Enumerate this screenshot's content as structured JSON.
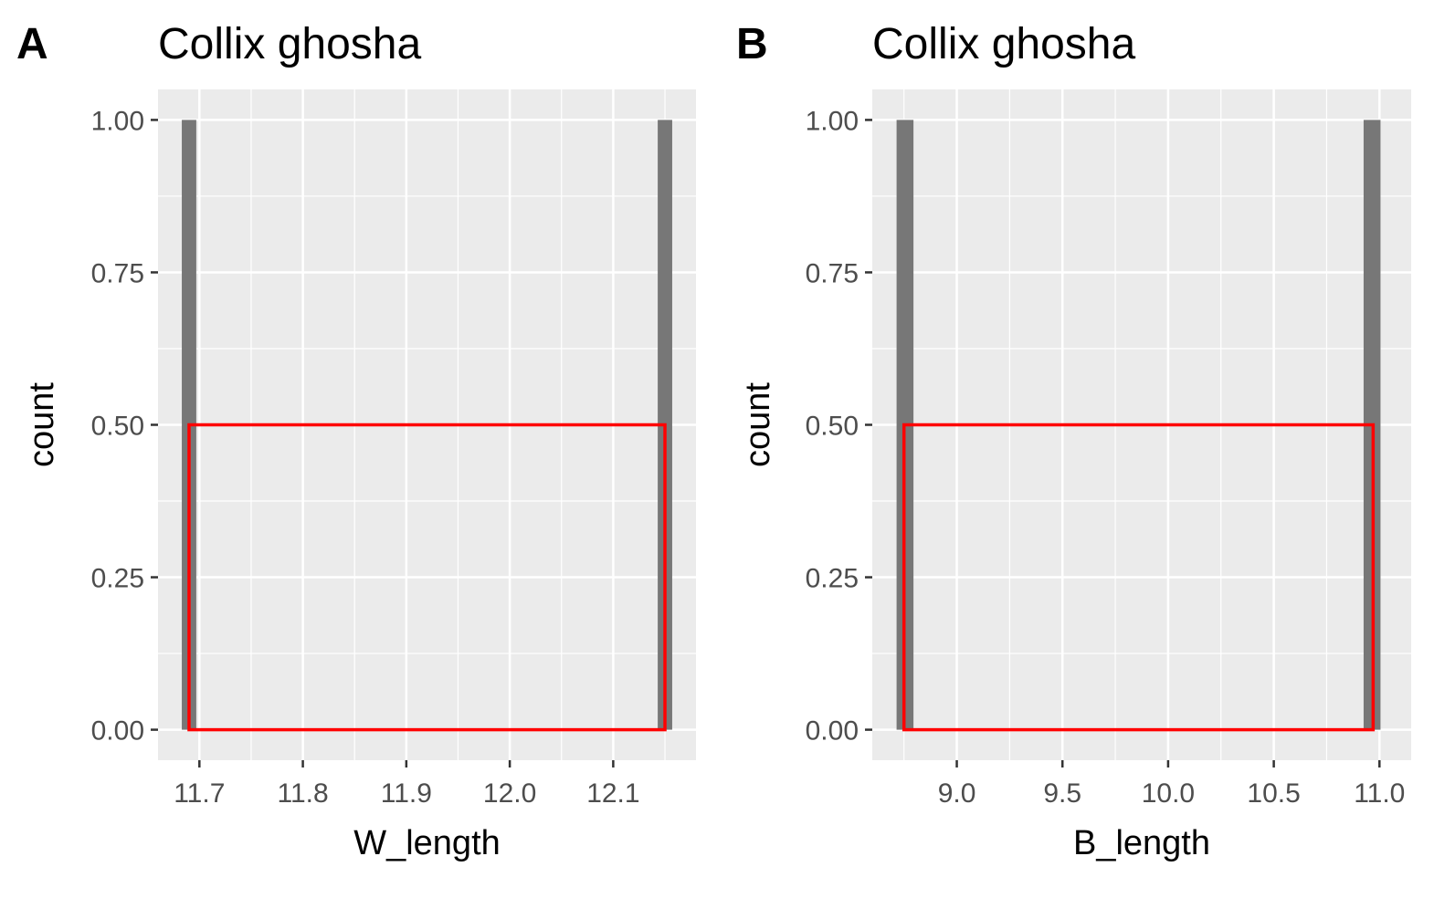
{
  "chart_data": [
    {
      "type": "histogram",
      "panel": "A",
      "title": "Collix ghosha",
      "xlabel": "W_length",
      "ylabel": "count",
      "xlim": [
        11.66,
        12.18
      ],
      "ylim": [
        -0.05,
        1.05
      ],
      "x_ticks": [
        "11.7",
        "11.8",
        "11.9",
        "12.0",
        "12.1"
      ],
      "x_tick_values": [
        11.7,
        11.8,
        11.9,
        12.0,
        12.1
      ],
      "y_ticks": [
        "0.00",
        "0.25",
        "0.50",
        "0.75",
        "1.00"
      ],
      "y_tick_values": [
        0,
        0.25,
        0.5,
        0.75,
        1.0
      ],
      "bars": [
        {
          "xmin": 11.683,
          "xmax": 11.697,
          "count": 1
        },
        {
          "xmin": 12.143,
          "xmax": 12.157,
          "count": 1
        }
      ],
      "overlay_rect": {
        "xmin": 11.69,
        "xmax": 12.15,
        "ymin": 0,
        "ymax": 0.5
      },
      "colors": {
        "bar": "#777777",
        "overlay": "#ff0000",
        "panel_bg": "#ebebeb",
        "grid": "#ffffff"
      }
    },
    {
      "type": "histogram",
      "panel": "B",
      "title": "Collix ghosha",
      "xlabel": "B_length",
      "ylabel": "count",
      "xlim": [
        8.6,
        11.15
      ],
      "ylim": [
        -0.05,
        1.05
      ],
      "x_ticks": [
        "9.0",
        "9.5",
        "10.0",
        "10.5",
        "11.0"
      ],
      "x_tick_values": [
        9.0,
        9.5,
        10.0,
        10.5,
        11.0
      ],
      "y_ticks": [
        "0.00",
        "0.25",
        "0.50",
        "0.75",
        "1.00"
      ],
      "y_tick_values": [
        0,
        0.25,
        0.5,
        0.75,
        1.0
      ],
      "bars": [
        {
          "xmin": 8.715,
          "xmax": 8.795,
          "count": 1
        },
        {
          "xmin": 10.925,
          "xmax": 11.005,
          "count": 1
        }
      ],
      "overlay_rect": {
        "xmin": 8.75,
        "xmax": 10.97,
        "ymin": 0,
        "ymax": 0.5
      },
      "colors": {
        "bar": "#777777",
        "overlay": "#ff0000",
        "panel_bg": "#ebebeb",
        "grid": "#ffffff"
      }
    }
  ]
}
